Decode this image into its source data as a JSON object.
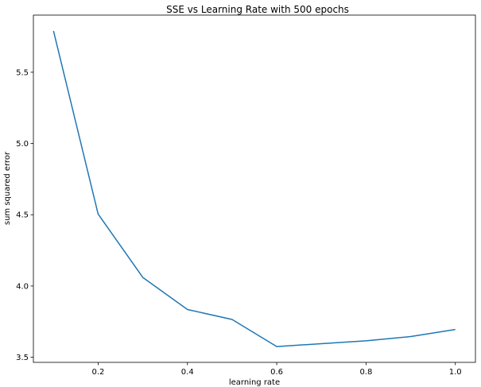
{
  "chart_data": {
    "type": "line",
    "title": "SSE vs Learning Rate with 500 epochs",
    "xlabel": "learning rate",
    "ylabel": "sum squared error",
    "x": [
      0.1,
      0.2,
      0.3,
      0.4,
      0.5,
      0.6,
      0.7,
      0.8,
      0.9,
      1.0
    ],
    "series": [
      {
        "values": [
          5.79,
          4.505,
          4.06,
          3.835,
          3.765,
          3.575,
          3.595,
          3.615,
          3.645,
          3.695
        ],
        "color": "#1f77b4"
      }
    ],
    "xticks": [
      0.2,
      0.4,
      0.6,
      0.8,
      1.0
    ],
    "xtick_labels": [
      "0.2",
      "0.4",
      "0.6",
      "0.8",
      "1.0"
    ],
    "yticks": [
      3.5,
      4.0,
      4.5,
      5.0,
      5.5
    ],
    "ytick_labels": [
      "3.5",
      "4.0",
      "4.5",
      "5.0",
      "5.5"
    ],
    "xlim": [
      0.055,
      1.045
    ],
    "ylim": [
      3.464,
      5.901
    ],
    "grid": false,
    "legend": false
  }
}
